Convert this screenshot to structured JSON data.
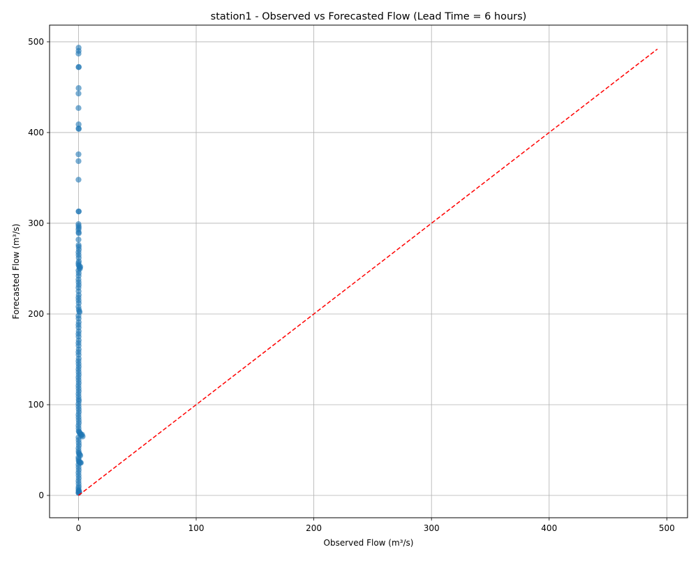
{
  "chart_data": {
    "type": "scatter",
    "title": "station1 - Observed vs Forecasted Flow (Lead Time = 6 hours)",
    "xlabel": "Observed Flow (m³/s)",
    "ylabel": "Forecasted Flow (m³/s)",
    "xlim": [
      -24.6,
      517.6
    ],
    "ylim": [
      -24.6,
      518.4
    ],
    "xticks": [
      0,
      100,
      200,
      300,
      400,
      500
    ],
    "yticks": [
      0,
      100,
      200,
      300,
      400,
      500
    ],
    "grid": true,
    "point_color": "#1f77b4",
    "point_alpha": 0.6,
    "reference_line": {
      "style": "dashed",
      "color": "#ff0000",
      "from": [
        0,
        0
      ],
      "to": [
        492,
        492
      ]
    },
    "points": [
      [
        0.1,
        493.5
      ],
      [
        0.1,
        490.0
      ],
      [
        0.0,
        487.0
      ],
      [
        0.1,
        472.0
      ],
      [
        0.2,
        472.3
      ],
      [
        0.1,
        449.0
      ],
      [
        0.0,
        443.0
      ],
      [
        0.0,
        427.0
      ],
      [
        0.1,
        409.0
      ],
      [
        0.1,
        404.5
      ],
      [
        0.2,
        404.0
      ],
      [
        0.0,
        376.0
      ],
      [
        0.0,
        368.5
      ],
      [
        0.0,
        348.0
      ],
      [
        0.1,
        313.0
      ],
      [
        0.2,
        313.0
      ],
      [
        0.0,
        299.0
      ],
      [
        0.1,
        297.0
      ],
      [
        0.2,
        295.0
      ],
      [
        0.0,
        293.0
      ],
      [
        0.1,
        290.0
      ],
      [
        0.2,
        289.0
      ],
      [
        0.0,
        282.0
      ],
      [
        0.1,
        276.0
      ],
      [
        0.2,
        274.0
      ],
      [
        0.3,
        271.0
      ],
      [
        0.0,
        268.0
      ],
      [
        0.1,
        265.0
      ],
      [
        0.2,
        262.0
      ],
      [
        0.3,
        258.0
      ],
      [
        0.0,
        256.0
      ],
      [
        0.1,
        254.0
      ],
      [
        0.5,
        253.0
      ],
      [
        0.8,
        251.0
      ],
      [
        1.2,
        250.0
      ],
      [
        1.5,
        252.0
      ],
      [
        0.0,
        248.0
      ],
      [
        0.2,
        245.0
      ],
      [
        0.1,
        242.0
      ],
      [
        0.0,
        238.0
      ],
      [
        0.1,
        235.0
      ],
      [
        0.2,
        232.0
      ],
      [
        0.0,
        229.0
      ],
      [
        0.1,
        225.0
      ],
      [
        0.2,
        221.0
      ],
      [
        0.0,
        218.0
      ],
      [
        0.1,
        215.0
      ],
      [
        0.2,
        212.0
      ],
      [
        0.0,
        208.0
      ],
      [
        0.3,
        205.0
      ],
      [
        0.6,
        203.0
      ],
      [
        0.9,
        202.0
      ],
      [
        0.0,
        198.0
      ],
      [
        0.1,
        195.0
      ],
      [
        0.2,
        191.0
      ],
      [
        0.0,
        188.0
      ],
      [
        0.1,
        185.0
      ],
      [
        0.2,
        181.0
      ],
      [
        0.0,
        178.0
      ],
      [
        0.1,
        175.0
      ],
      [
        0.2,
        171.0
      ],
      [
        0.0,
        168.0
      ],
      [
        0.1,
        165.0
      ],
      [
        0.2,
        161.0
      ],
      [
        0.0,
        158.0
      ],
      [
        0.1,
        155.0
      ],
      [
        0.2,
        151.0
      ],
      [
        0.0,
        148.0
      ],
      [
        0.1,
        145.0
      ],
      [
        0.2,
        142.0
      ],
      [
        0.0,
        139.0
      ],
      [
        0.1,
        136.0
      ],
      [
        0.2,
        133.0
      ],
      [
        0.0,
        130.0
      ],
      [
        0.1,
        127.0
      ],
      [
        0.2,
        124.0
      ],
      [
        0.0,
        121.0
      ],
      [
        0.1,
        118.0
      ],
      [
        0.2,
        115.0
      ],
      [
        0.0,
        112.0
      ],
      [
        0.1,
        109.0
      ],
      [
        0.2,
        106.0
      ],
      [
        0.3,
        104.0
      ],
      [
        0.0,
        101.0
      ],
      [
        0.1,
        98.0
      ],
      [
        0.2,
        95.0
      ],
      [
        0.3,
        92.0
      ],
      [
        0.0,
        89.0
      ],
      [
        0.1,
        86.0
      ],
      [
        0.2,
        83.0
      ],
      [
        0.3,
        80.0
      ],
      [
        0.0,
        77.0
      ],
      [
        0.1,
        74.0
      ],
      [
        0.2,
        71.0
      ],
      [
        0.5,
        70.0
      ],
      [
        1.0,
        69.0
      ],
      [
        1.5,
        68.0
      ],
      [
        2.0,
        67.0
      ],
      [
        2.5,
        66.0
      ],
      [
        3.0,
        67.0
      ],
      [
        3.5,
        65.0
      ],
      [
        0.0,
        64.0
      ],
      [
        0.1,
        61.0
      ],
      [
        0.2,
        58.0
      ],
      [
        0.3,
        55.0
      ],
      [
        0.0,
        52.0
      ],
      [
        0.1,
        49.0
      ],
      [
        0.2,
        47.0
      ],
      [
        0.5,
        46.0
      ],
      [
        1.0,
        45.0
      ],
      [
        1.5,
        44.0
      ],
      [
        0.0,
        42.0
      ],
      [
        0.1,
        40.0
      ],
      [
        0.2,
        38.0
      ],
      [
        0.5,
        37.0
      ],
      [
        1.0,
        36.5
      ],
      [
        1.5,
        36.0
      ],
      [
        2.0,
        36.0
      ],
      [
        0.0,
        34.0
      ],
      [
        0.1,
        31.0
      ],
      [
        0.2,
        28.0
      ],
      [
        0.0,
        25.0
      ],
      [
        0.1,
        22.0
      ],
      [
        0.2,
        19.0
      ],
      [
        0.0,
        16.0
      ],
      [
        0.1,
        13.0
      ],
      [
        0.2,
        10.0
      ],
      [
        0.0,
        8.0
      ],
      [
        0.1,
        6.0
      ],
      [
        0.2,
        5.0
      ],
      [
        0.3,
        4.5
      ],
      [
        0.4,
        4.0
      ],
      [
        0.6,
        3.5
      ],
      [
        0.0,
        3.0
      ],
      [
        0.1,
        2.8
      ]
    ]
  }
}
